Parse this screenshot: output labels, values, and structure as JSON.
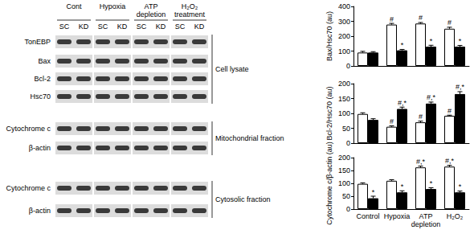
{
  "chart_data": [
    {
      "type": "bar",
      "ylabel": "Bax/Hsc70 (au)",
      "categories": [
        "Control",
        "Hypoxia",
        "ATP depletion",
        "H₂O₂"
      ],
      "ylim": [
        0,
        400
      ],
      "yticks": [
        0,
        100,
        200,
        300,
        400
      ],
      "grid": false,
      "tick_labels": "y",
      "series": [
        {
          "name": "SC",
          "color": "#ffffff",
          "values": [
            90,
            278,
            285,
            250
          ],
          "errors": [
            8,
            8,
            7,
            10
          ],
          "annotations": [
            null,
            "#",
            "#",
            "#"
          ]
        },
        {
          "name": "KD",
          "color": "#000000",
          "values": [
            90,
            105,
            130,
            130
          ],
          "errors": [
            6,
            6,
            9,
            8
          ],
          "annotations": [
            null,
            "*",
            "*",
            "*"
          ]
        }
      ]
    },
    {
      "type": "bar",
      "ylabel": "Bcl-2/Hsc70 (au)",
      "categories": [
        "Control",
        "Hypoxia",
        "ATP depletion",
        "H₂O₂"
      ],
      "ylim": [
        0,
        200
      ],
      "yticks": [
        0,
        50,
        100,
        150,
        200
      ],
      "grid": false,
      "tick_labels": "y",
      "series": [
        {
          "name": "SC",
          "color": "#ffffff",
          "values": [
            98,
            55,
            70,
            92
          ],
          "errors": [
            4,
            3,
            4,
            2
          ],
          "annotations": [
            null,
            "#",
            "#",
            "#"
          ]
        },
        {
          "name": "KD",
          "color": "#000000",
          "values": [
            78,
            115,
            133,
            165
          ],
          "errors": [
            4,
            6,
            5,
            8
          ],
          "annotations": [
            null,
            "#,*",
            "#,*",
            "#,*"
          ]
        }
      ]
    },
    {
      "type": "bar",
      "ylabel": "Cytochrome c/β-actin (au)",
      "categories": [
        "Control",
        "Hypoxia",
        "ATP depletion",
        "H₂O₂"
      ],
      "ylim": [
        0,
        200
      ],
      "yticks": [
        0,
        50,
        100,
        150,
        200
      ],
      "grid": false,
      "series": [
        {
          "name": "SC",
          "color": "#ffffff",
          "values": [
            98,
            110,
            162,
            165
          ],
          "errors": [
            4,
            4,
            5,
            5
          ],
          "annotations": [
            null,
            null,
            "#,*",
            "#,*"
          ]
        },
        {
          "name": "KD",
          "color": "#000000",
          "values": [
            42,
            65,
            78,
            65
          ],
          "errors": [
            8,
            6,
            5,
            5
          ],
          "annotations": [
            "*",
            "*",
            "*",
            "*"
          ]
        }
      ]
    }
  ],
  "blot": {
    "groups": [
      "Cont",
      "Hypoxia",
      "ATP depletion",
      "H₂O₂ treatment"
    ],
    "lanes": [
      "SC",
      "KD"
    ],
    "fractions": [
      {
        "label": "Cell lysate",
        "rows": [
          "TonEBP",
          "Bax",
          "Bcl-2",
          "Hsc70"
        ]
      },
      {
        "label": "Mitochondrial fraction",
        "rows": [
          "Cytochrome c",
          "β-actin"
        ]
      },
      {
        "label": "Cytosolic fraction",
        "rows": [
          "Cytochrome c",
          "β-actin"
        ]
      }
    ]
  }
}
